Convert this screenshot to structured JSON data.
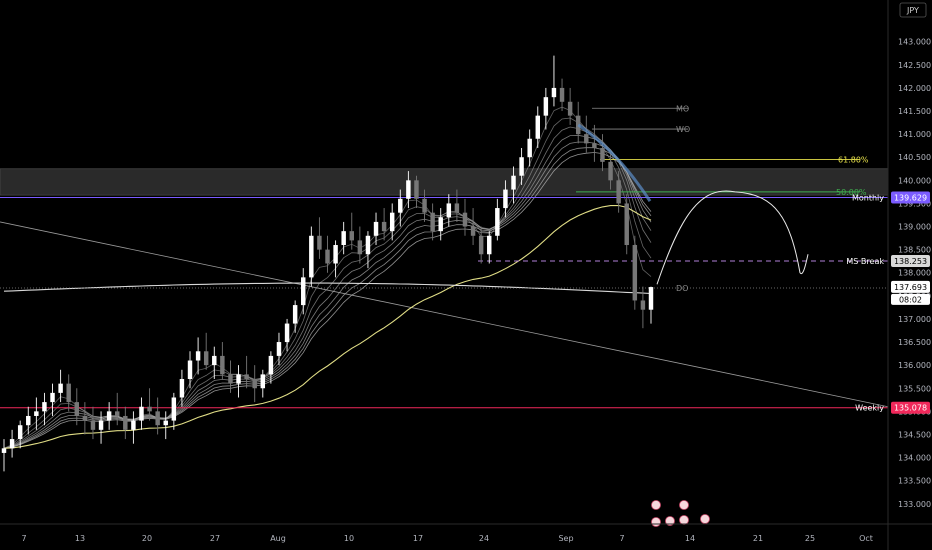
{
  "chart_data": {
    "type": "candlestick",
    "currency_label": "JPY",
    "y_range": [
      132.8,
      143.6
    ],
    "y_ticks": [
      "143.000",
      "142.500",
      "142.000",
      "141.500",
      "141.000",
      "140.500",
      "140.000",
      "139.500",
      "139.000",
      "138.500",
      "138.000",
      "137.500",
      "137.000",
      "136.500",
      "136.000",
      "135.500",
      "135.000",
      "134.500",
      "134.000",
      "133.500",
      "133.000"
    ],
    "x_ticks": [
      "7",
      "13",
      "20",
      "27",
      "Aug",
      "10",
      "17",
      "24",
      "Sep",
      "7",
      "14",
      "21",
      "25",
      "Oct"
    ],
    "candles_ohlc": [
      [
        134.1,
        134.4,
        133.7,
        134.2
      ],
      [
        134.2,
        134.6,
        134.0,
        134.4
      ],
      [
        134.4,
        134.8,
        134.2,
        134.7
      ],
      [
        134.7,
        135.1,
        134.5,
        134.9
      ],
      [
        134.9,
        135.3,
        134.6,
        135.0
      ],
      [
        135.0,
        135.4,
        134.7,
        135.2
      ],
      [
        135.2,
        135.6,
        134.9,
        135.4
      ],
      [
        135.4,
        135.9,
        135.2,
        135.6
      ],
      [
        135.6,
        135.8,
        135.0,
        135.2
      ],
      [
        135.2,
        135.5,
        134.7,
        134.9
      ],
      [
        134.9,
        135.2,
        134.5,
        134.8
      ],
      [
        134.8,
        135.1,
        134.4,
        134.6
      ],
      [
        134.6,
        135.0,
        134.3,
        134.8
      ],
      [
        134.8,
        135.2,
        134.6,
        135.0
      ],
      [
        135.0,
        135.4,
        134.7,
        134.9
      ],
      [
        134.9,
        135.1,
        134.4,
        134.6
      ],
      [
        134.6,
        135.0,
        134.3,
        134.8
      ],
      [
        134.8,
        135.3,
        134.6,
        135.1
      ],
      [
        135.1,
        135.5,
        134.8,
        135.0
      ],
      [
        135.0,
        135.3,
        134.5,
        134.7
      ],
      [
        134.7,
        135.0,
        134.4,
        134.8
      ],
      [
        134.8,
        135.4,
        134.6,
        135.3
      ],
      [
        135.3,
        135.9,
        135.1,
        135.7
      ],
      [
        135.7,
        136.3,
        135.5,
        136.1
      ],
      [
        136.1,
        136.6,
        135.8,
        136.3
      ],
      [
        136.3,
        136.7,
        135.9,
        136.0
      ],
      [
        136.0,
        136.4,
        135.7,
        136.2
      ],
      [
        136.2,
        136.5,
        135.7,
        135.8
      ],
      [
        135.8,
        136.1,
        135.4,
        135.6
      ],
      [
        135.6,
        136.0,
        135.3,
        135.8
      ],
      [
        135.8,
        136.2,
        135.5,
        135.7
      ],
      [
        135.7,
        136.0,
        135.2,
        135.5
      ],
      [
        135.5,
        135.9,
        135.3,
        135.8
      ],
      [
        135.8,
        136.3,
        135.6,
        136.2
      ],
      [
        136.2,
        136.7,
        136.0,
        136.5
      ],
      [
        136.5,
        137.0,
        136.3,
        136.9
      ],
      [
        136.9,
        137.4,
        136.7,
        137.3
      ],
      [
        137.3,
        138.1,
        137.1,
        137.9
      ],
      [
        137.9,
        139.0,
        137.7,
        138.8
      ],
      [
        138.8,
        139.2,
        138.3,
        138.5
      ],
      [
        138.5,
        138.8,
        138.0,
        138.2
      ],
      [
        138.2,
        138.7,
        137.9,
        138.6
      ],
      [
        138.6,
        139.1,
        138.4,
        138.9
      ],
      [
        138.9,
        139.3,
        138.5,
        138.7
      ],
      [
        138.7,
        139.0,
        138.2,
        138.4
      ],
      [
        138.4,
        138.9,
        138.1,
        138.8
      ],
      [
        138.8,
        139.3,
        138.6,
        139.1
      ],
      [
        139.1,
        139.4,
        138.7,
        138.9
      ],
      [
        138.9,
        139.5,
        138.7,
        139.3
      ],
      [
        139.3,
        139.8,
        139.0,
        139.6
      ],
      [
        139.6,
        140.2,
        139.4,
        140.0
      ],
      [
        140.0,
        140.1,
        139.4,
        139.6
      ],
      [
        139.6,
        139.8,
        139.1,
        139.3
      ],
      [
        139.3,
        139.5,
        138.7,
        138.9
      ],
      [
        138.9,
        139.4,
        138.7,
        139.2
      ],
      [
        139.2,
        139.7,
        139.0,
        139.5
      ],
      [
        139.5,
        139.8,
        139.1,
        139.3
      ],
      [
        139.3,
        139.6,
        138.8,
        139.0
      ],
      [
        139.0,
        139.4,
        138.6,
        138.8
      ],
      [
        138.8,
        139.0,
        138.2,
        138.4
      ],
      [
        138.4,
        138.9,
        138.2,
        138.8
      ],
      [
        138.8,
        139.6,
        138.7,
        139.4
      ],
      [
        139.4,
        140.0,
        139.2,
        139.8
      ],
      [
        139.8,
        140.3,
        139.5,
        140.1
      ],
      [
        140.1,
        140.7,
        139.9,
        140.5
      ],
      [
        140.5,
        141.1,
        140.3,
        140.9
      ],
      [
        140.9,
        141.6,
        140.7,
        141.4
      ],
      [
        141.4,
        142.0,
        141.1,
        141.8
      ],
      [
        141.8,
        142.7,
        141.6,
        142.0
      ],
      [
        142.0,
        142.2,
        141.5,
        141.7
      ],
      [
        141.7,
        142.0,
        141.2,
        141.4
      ],
      [
        141.4,
        141.7,
        140.8,
        141.0
      ],
      [
        141.0,
        141.4,
        140.6,
        140.8
      ],
      [
        140.8,
        141.2,
        140.4,
        140.7
      ],
      [
        140.7,
        141.0,
        140.2,
        140.4
      ],
      [
        140.4,
        140.6,
        139.8,
        140.0
      ],
      [
        140.0,
        140.2,
        139.3,
        139.5
      ],
      [
        139.5,
        139.7,
        138.4,
        138.6
      ],
      [
        138.6,
        138.8,
        137.2,
        137.4
      ],
      [
        137.4,
        137.7,
        136.8,
        137.2
      ],
      [
        137.2,
        137.7,
        136.9,
        137.69
      ]
    ],
    "levels": [
      {
        "name": "Monthly",
        "price": 139.629,
        "price_label": "139.629",
        "color": "#7b5cff"
      },
      {
        "name": "MS Break",
        "price": 138.253,
        "price_label": "138.253",
        "color": "#b07fd8"
      },
      {
        "name": "Weekly",
        "price": 135.078,
        "price_label": "135.078",
        "color": "#f0285a"
      }
    ],
    "current_price": {
      "price": 137.693,
      "label": "137.693",
      "countdown": "08:02"
    },
    "fib_levels": [
      {
        "label": "61.80%",
        "price": 140.45,
        "color": "#e6e04a"
      },
      {
        "label": "50.00%",
        "price": 139.75,
        "color": "#3fae4f"
      }
    ],
    "tagged_lines": [
      {
        "label": "MO",
        "price": 141.56
      },
      {
        "label": "WO",
        "price": 141.11
      },
      {
        "label": "DO",
        "price": 137.67
      }
    ],
    "colors": {
      "background": "#000000",
      "bull_candle": "#ffffff",
      "bear_candle": "#777777",
      "ma_long": "#e0dd86",
      "ma_flat": "#d8d8d8",
      "ribbon": "#aaaaaa",
      "supply_zone": "#2a2a2a"
    }
  }
}
